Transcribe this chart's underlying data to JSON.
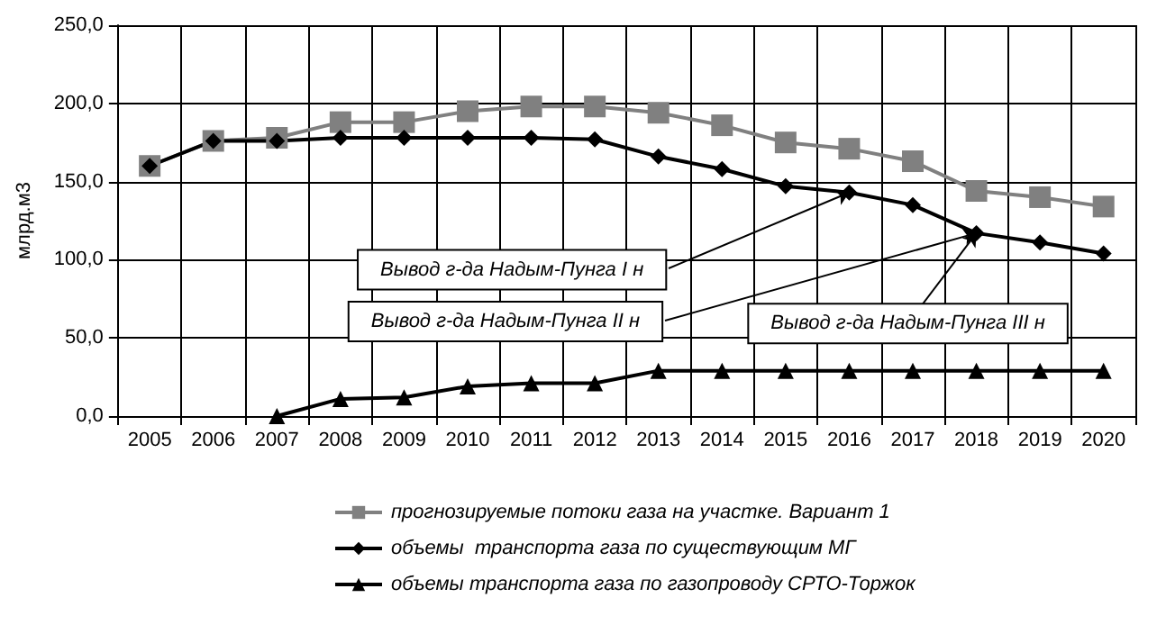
{
  "chart_data": {
    "type": "line",
    "ylabel": "млрд.м3",
    "categories": [
      "2005",
      "2006",
      "2007",
      "2008",
      "2009",
      "2010",
      "2011",
      "2012",
      "2013",
      "2014",
      "2015",
      "2016",
      "2017",
      "2018",
      "2019",
      "2020"
    ],
    "series": [
      {
        "name": "прогнозируемые потоки газа на участке. Вариант 1",
        "color": "#808080",
        "marker": "square",
        "values": [
          160,
          176,
          178,
          188,
          188,
          195,
          198,
          198,
          194,
          186,
          175,
          171,
          163,
          144,
          140,
          134
        ]
      },
      {
        "name": "объемы  транспорта газа по существующим МГ",
        "color": "#000000",
        "marker": "diamond",
        "values": [
          160,
          176,
          176,
          178,
          178,
          178,
          178,
          177,
          166,
          158,
          147,
          143,
          135,
          117,
          111,
          104
        ]
      },
      {
        "name": "объемы транспорта газа по газопроводу СРТО-Торжок",
        "color": "#000000",
        "marker": "triangle",
        "values": [
          null,
          null,
          0,
          11,
          12,
          19,
          21,
          21,
          29,
          29,
          29,
          29,
          29,
          29,
          29,
          29
        ]
      }
    ],
    "ylim": [
      0,
      250
    ],
    "yticks": [
      {
        "value": 0,
        "label": "0,0"
      },
      {
        "value": 50,
        "label": "50,0"
      },
      {
        "value": 100,
        "label": "100,0"
      },
      {
        "value": 150,
        "label": "150,0"
      },
      {
        "value": 200,
        "label": "200,0"
      },
      {
        "value": 250,
        "label": "250,0"
      }
    ],
    "grid": true,
    "legend": "bottom",
    "line_style": "solid",
    "annotations": [
      {
        "text": "Вывод г-да Надым-Пунга I н",
        "x": "2016",
        "y": 143
      },
      {
        "text": "Вывод г-да Надым-Пунга II н",
        "x": "2018",
        "y": 117
      },
      {
        "text": "Вывод г-да Надым-Пунга III н",
        "x": "2018",
        "y": 117
      }
    ]
  }
}
